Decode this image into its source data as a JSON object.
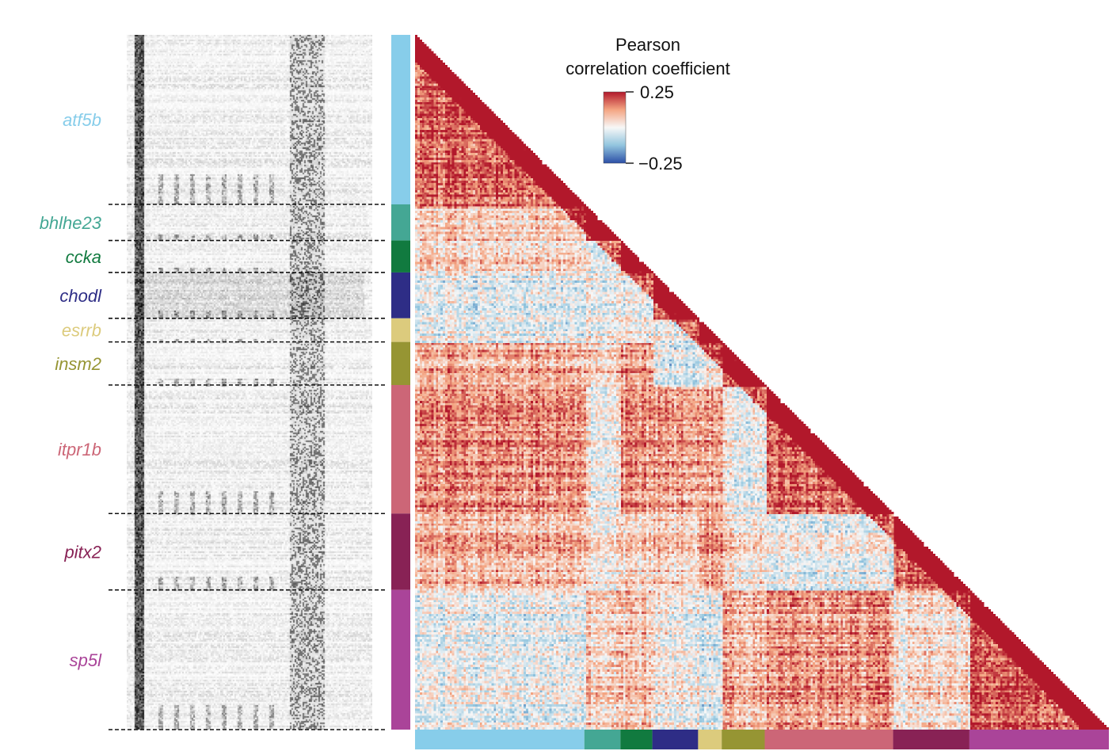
{
  "chart_data": {
    "type": "heatmap",
    "description_free": true,
    "legend": {
      "title_line1": "Pearson",
      "title_line2": "correlation coefficient",
      "max_label": "0.25",
      "min_label": "−0.25",
      "vmin": -0.25,
      "vmax": 0.25,
      "colors": {
        "high": "#b2182b",
        "mid_high": "#f4a582",
        "mid": "#f7f7f7",
        "mid_low": "#92c5de",
        "low": "#2c4fa6"
      }
    },
    "clusters": [
      {
        "name": "atf5b",
        "fraction": 0.244,
        "color": "#87CDEA"
      },
      {
        "name": "bhlhe23",
        "fraction": 0.052,
        "color": "#44A794"
      },
      {
        "name": "ccka",
        "fraction": 0.046,
        "color": "#117A3F"
      },
      {
        "name": "chodl",
        "fraction": 0.066,
        "color": "#2E2D86"
      },
      {
        "name": "esrrb",
        "fraction": 0.034,
        "color": "#DCCB7D"
      },
      {
        "name": "insm2",
        "fraction": 0.062,
        "color": "#969533"
      },
      {
        "name": "itpr1b",
        "fraction": 0.185,
        "color": "#CC6677"
      },
      {
        "name": "pitx2",
        "fraction": 0.11,
        "color": "#882255"
      },
      {
        "name": "sp5l",
        "fraction": 0.201,
        "color": "#AA4499"
      }
    ]
  }
}
